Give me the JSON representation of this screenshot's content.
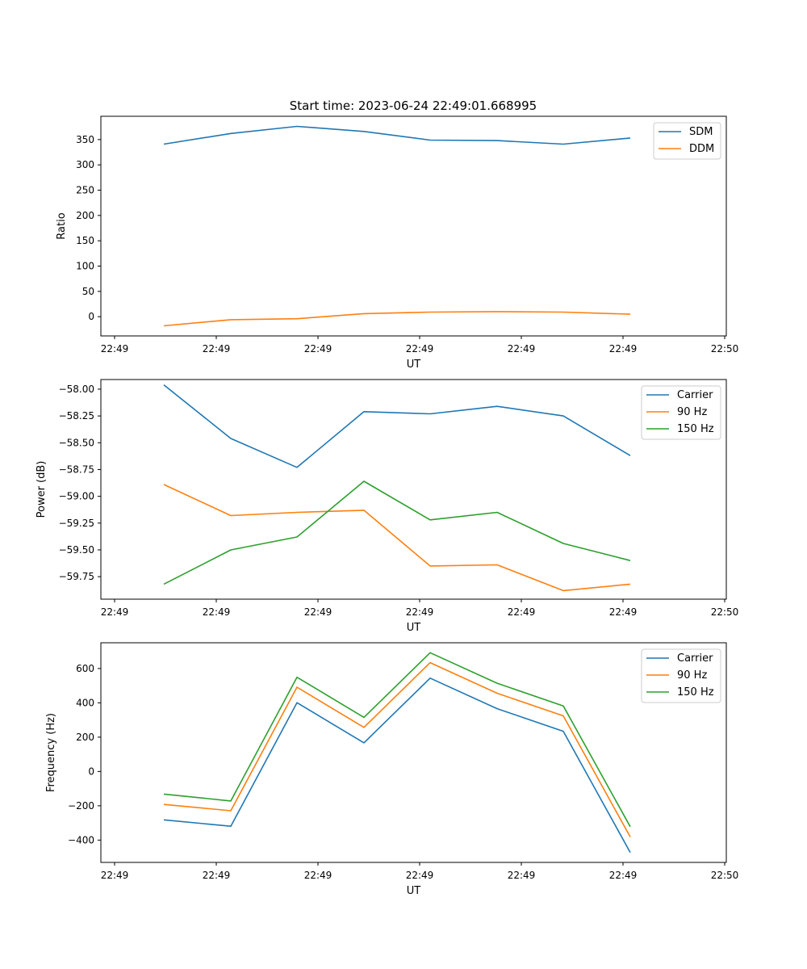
{
  "figure": {
    "title": "Start time: 2023-06-24 22:49:01.668995"
  },
  "chart_data": [
    {
      "type": "line",
      "xlabel": "UT",
      "ylabel": "Ratio",
      "x_tick_labels": [
        "22:49",
        "22:49",
        "22:49",
        "22:49",
        "22:49",
        "22:49",
        "22:50"
      ],
      "y_ticks": [
        0,
        50,
        100,
        150,
        200,
        250,
        300,
        350
      ],
      "ylim": [
        -38,
        396
      ],
      "legend": "top-right",
      "series": [
        {
          "name": "SDM",
          "color": "#1f77b4",
          "values": [
            341,
            362,
            376,
            366,
            349,
            348,
            341,
            353
          ]
        },
        {
          "name": "DDM",
          "color": "#ff7f0e",
          "values": [
            -18,
            -6,
            -4,
            6,
            9,
            10,
            9,
            5
          ]
        }
      ]
    },
    {
      "type": "line",
      "xlabel": "UT",
      "ylabel": "Power (dB)",
      "x_tick_labels": [
        "22:49",
        "22:49",
        "22:49",
        "22:49",
        "22:49",
        "22:49",
        "22:50"
      ],
      "y_ticks": [
        -59.75,
        -59.5,
        -59.25,
        -59.0,
        -58.75,
        -58.5,
        -58.25,
        -58.0
      ],
      "y_tick_labels": [
        "−59.75",
        "−59.50",
        "−59.25",
        "−59.00",
        "−58.75",
        "−58.50",
        "−58.25",
        "−58.00"
      ],
      "ylim": [
        -59.96,
        -57.91
      ],
      "legend": "top-right",
      "series": [
        {
          "name": "Carrier",
          "color": "#1f77b4",
          "values": [
            -57.96,
            -58.46,
            -58.73,
            -58.21,
            -58.23,
            -58.16,
            -58.25,
            -58.62
          ]
        },
        {
          "name": "90 Hz",
          "color": "#ff7f0e",
          "values": [
            -58.89,
            -59.18,
            -59.15,
            -59.13,
            -59.65,
            -59.64,
            -59.88,
            -59.82
          ]
        },
        {
          "name": "150 Hz",
          "color": "#2ca02c",
          "values": [
            -59.82,
            -59.5,
            -59.38,
            -58.86,
            -59.22,
            -59.15,
            -59.44,
            -59.6
          ]
        }
      ]
    },
    {
      "type": "line",
      "xlabel": "UT",
      "ylabel": "Frequency (Hz)",
      "x_tick_labels": [
        "22:49",
        "22:49",
        "22:49",
        "22:49",
        "22:49",
        "22:49",
        "22:50"
      ],
      "y_ticks": [
        -400,
        -200,
        0,
        200,
        400,
        600
      ],
      "y_tick_labels": [
        "−400",
        "−200",
        "0",
        "200",
        "400",
        "600"
      ],
      "ylim": [
        -530,
        750
      ],
      "legend": "top-right",
      "series": [
        {
          "name": "Carrier",
          "color": "#1f77b4",
          "values": [
            -282,
            -319,
            401,
            167,
            544,
            366,
            234,
            -472
          ]
        },
        {
          "name": "90 Hz",
          "color": "#ff7f0e",
          "values": [
            -192,
            -229,
            491,
            257,
            634,
            456,
            324,
            -382
          ]
        },
        {
          "name": "150 Hz",
          "color": "#2ca02c",
          "values": [
            -132,
            -172,
            549,
            315,
            692,
            514,
            382,
            -322
          ]
        }
      ]
    }
  ]
}
